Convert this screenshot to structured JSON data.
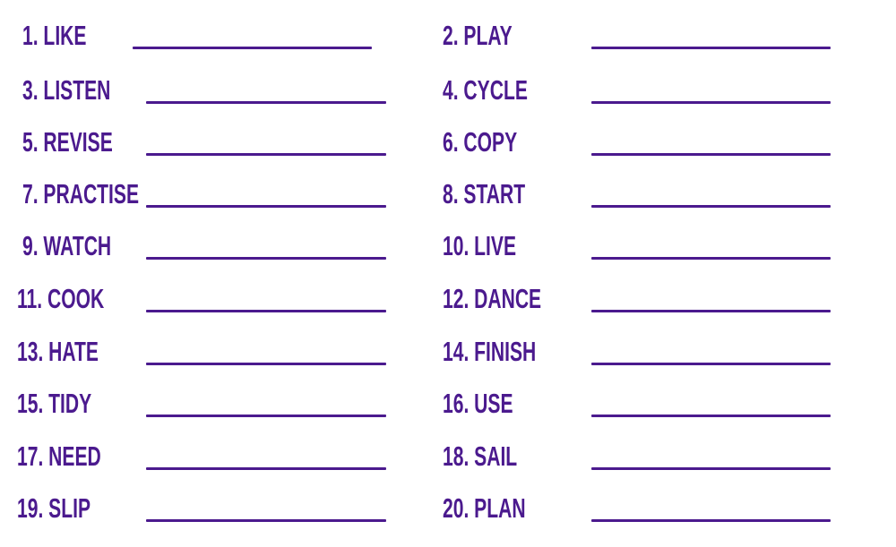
{
  "accent_color": "#4b1a8e",
  "items": [
    {
      "label": "1. LIKE"
    },
    {
      "label": "2. PLAY"
    },
    {
      "label": "3. LISTEN"
    },
    {
      "label": "4. CYCLE"
    },
    {
      "label": "5. REVISE"
    },
    {
      "label": "6. COPY"
    },
    {
      "label": "7. PRACTISE"
    },
    {
      "label": "8. START"
    },
    {
      "label": "9. WATCH"
    },
    {
      "label": "10. LIVE"
    },
    {
      "label": "11. COOK"
    },
    {
      "label": "12. DANCE"
    },
    {
      "label": "13. HATE"
    },
    {
      "label": "14. FINISH"
    },
    {
      "label": "15. TIDY"
    },
    {
      "label": "16. USE"
    },
    {
      "label": "17. NEED"
    },
    {
      "label": "18. SAIL"
    },
    {
      "label": "19. SLIP"
    },
    {
      "label": "20. PLAN"
    }
  ]
}
